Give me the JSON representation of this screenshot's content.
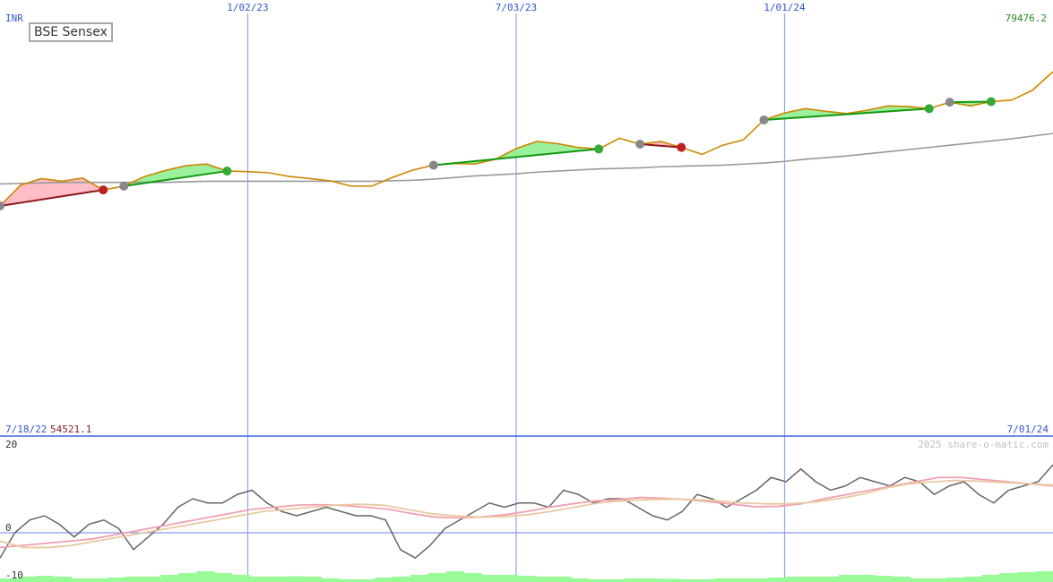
{
  "chart_data": [
    {
      "type": "line",
      "title": "BSE Sensex",
      "currency": "INR",
      "x_start_label": "7/18/22",
      "x_end_label": "7/01/24",
      "date_ticks": [
        "1/02/23",
        "7/03/23",
        "1/01/24"
      ],
      "y_max_label": "79476.2",
      "y_min_label": "54521.1",
      "ylim": [
        54521.1,
        79476.2
      ],
      "grid": "vertical lines at date ticks",
      "series": [
        {
          "role": "price",
          "color": "#cc8800",
          "x": [
            "7/18/22",
            "8/01/22",
            "8/15/22",
            "8/29/22",
            "9/12/22",
            "9/26/22",
            "10/10/22",
            "10/24/22",
            "11/07/22",
            "11/21/22",
            "12/05/22",
            "12/19/22",
            "1/02/23",
            "1/16/23",
            "1/30/23",
            "2/13/23",
            "2/27/23",
            "3/13/23",
            "3/27/23",
            "4/10/23",
            "4/24/23",
            "5/08/23",
            "5/22/23",
            "6/05/23",
            "6/19/23",
            "7/03/23",
            "7/17/23",
            "7/31/23",
            "8/14/23",
            "8/28/23",
            "9/11/23",
            "9/25/23",
            "10/09/23",
            "10/23/23",
            "11/06/23",
            "11/20/23",
            "12/04/23",
            "12/18/23",
            "1/01/24",
            "1/15/24",
            "1/29/24",
            "2/12/24",
            "2/26/24",
            "3/11/24",
            "3/25/24",
            "4/08/24",
            "4/22/24",
            "5/06/24",
            "5/20/24",
            "6/03/24",
            "6/17/24",
            "7/01/24"
          ],
          "values": [
            54521.1,
            58400,
            59600,
            59100,
            59700,
            57500,
            58200,
            60000,
            61100,
            62000,
            62300,
            61000,
            60900,
            60700,
            60000,
            59600,
            59200,
            58200,
            58200,
            59800,
            61200,
            62100,
            62400,
            62300,
            63200,
            65200,
            66500,
            66100,
            65400,
            65100,
            67100,
            66000,
            66500,
            65400,
            64100,
            65800,
            66800,
            70500,
            71800,
            72600,
            72100,
            71700,
            72300,
            73100,
            73000,
            72600,
            73800,
            73100,
            73900,
            74200,
            76000,
            79476.2
          ]
        },
        {
          "role": "moving-average",
          "color": "#999999",
          "values": [
            58600,
            58700,
            58800,
            58900,
            58900,
            58900,
            58900,
            58900,
            58900,
            59000,
            59100,
            59100,
            59100,
            59100,
            59100,
            59100,
            59100,
            59100,
            59100,
            59200,
            59300,
            59500,
            59800,
            60100,
            60300,
            60500,
            60800,
            61000,
            61200,
            61400,
            61500,
            61600,
            61800,
            61900,
            62000,
            62100,
            62300,
            62500,
            62800,
            63200,
            63500,
            63800,
            64200,
            64600,
            65000,
            65400,
            65800,
            66200,
            66600,
            67000,
            67500,
            68000
          ]
        }
      ],
      "signals": [
        {
          "type": "loss",
          "from": "7/18/22",
          "to": "9/26/22"
        },
        {
          "type": "gain",
          "from": "10/10/22",
          "to": "12/19/22"
        },
        {
          "type": "gain",
          "from": "5/08/23",
          "to": "8/28/23"
        },
        {
          "type": "loss",
          "from": "9/25/23",
          "to": "10/23/23"
        },
        {
          "type": "gain",
          "from": "12/18/23",
          "to": "4/08/24"
        },
        {
          "type": "gain",
          "from": "4/22/24",
          "to": "5/20/24"
        }
      ]
    },
    {
      "type": "line",
      "ylim": [
        -10,
        20
      ],
      "y_tick_labels": [
        "20",
        "0",
        "-10"
      ],
      "watermark": "2025 share-o-matic.com",
      "series": [
        {
          "role": "momentum",
          "color": "#666666",
          "values": [
            -6,
            0,
            3,
            4,
            2,
            -1,
            2,
            3,
            1,
            -4,
            -1,
            2,
            6,
            8,
            7,
            7,
            9,
            10,
            7,
            5,
            4,
            5,
            6,
            5,
            4,
            4,
            3,
            -4,
            -6,
            -3,
            1,
            3,
            5,
            7,
            6,
            7,
            7,
            6,
            10,
            9,
            7,
            8,
            8,
            6,
            4,
            3,
            5,
            9,
            8,
            6,
            8,
            10,
            13,
            12,
            15,
            12,
            10,
            11,
            13,
            12,
            11,
            13,
            12,
            9,
            11,
            12,
            9,
            7,
            10,
            11,
            12,
            16
          ]
        },
        {
          "role": "signal",
          "color": "#f0a0b0",
          "values": [
            -3.5,
            -3,
            -2.5,
            -2,
            -1.5,
            -0.5,
            0.5,
            1.5,
            2.5,
            3.5,
            4.5,
            5.5,
            6,
            6.5,
            6.6,
            6.4,
            6,
            5.5,
            4.5,
            3.7,
            3.5,
            3.7,
            4.2,
            5,
            6,
            6.8,
            7.5,
            7.8,
            8.3,
            8.1,
            7.8,
            7.3,
            6.7,
            6.1,
            6.2,
            6.8,
            8,
            9,
            10,
            11,
            12,
            13,
            13,
            12.5,
            12,
            11.5,
            11
          ]
        },
        {
          "role": "signal-slow",
          "color": "#e8c8a0",
          "values": [
            -2,
            -3.5,
            -3.5,
            -3,
            -2,
            -1,
            0,
            1,
            2,
            3,
            4,
            5,
            5.5,
            6,
            6.5,
            6.7,
            6.5,
            5.5,
            4.5,
            4,
            3.7,
            3.8,
            4.2,
            5,
            6,
            7,
            7.5,
            7.8,
            7.9,
            7.8,
            7.5,
            7,
            6.8,
            6.8,
            7.2,
            8,
            9,
            10.5,
            11.5,
            12,
            12.3,
            12.1,
            11.8,
            11.5,
            11.2
          ]
        },
        {
          "role": "volume",
          "color": "#98fb98",
          "values": [
            2,
            3,
            3.5,
            3,
            2,
            2,
            2.5,
            3,
            3,
            4,
            5,
            6,
            5,
            4,
            3,
            3,
            3.2,
            3,
            2,
            1.5,
            1.5,
            2.5,
            3,
            4,
            5,
            6,
            5,
            4,
            4,
            3.5,
            3,
            3,
            2,
            1.5,
            1.5,
            2,
            2,
            1.8,
            1.5,
            1.5,
            2,
            2,
            2,
            2.5,
            3,
            3,
            3,
            4,
            4,
            3.5,
            3,
            2,
            2,
            2.5,
            3,
            4,
            5,
            5.5,
            6
          ]
        }
      ]
    }
  ]
}
